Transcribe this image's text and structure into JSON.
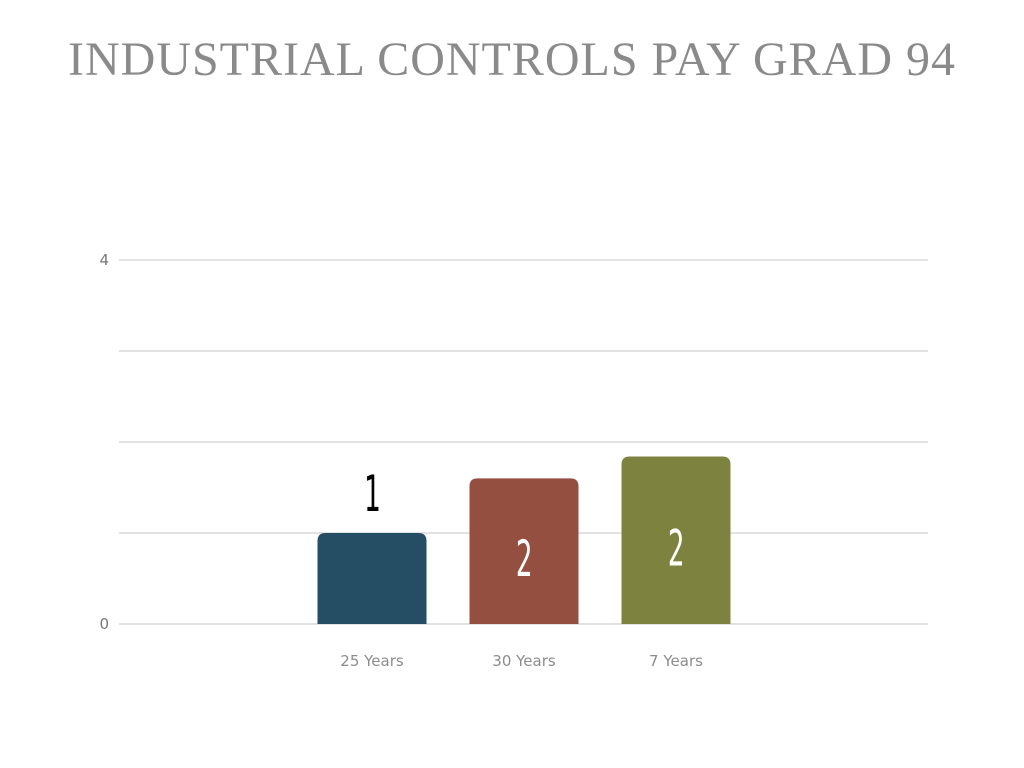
{
  "slide": {
    "title": "INDUSTRIAL CONTROLS PAY GRAD 94"
  },
  "chart_data": {
    "type": "bar",
    "title": "",
    "xlabel": "",
    "ylabel": "",
    "categories": [
      "25 Years",
      "30 Years",
      "7 Years"
    ],
    "values": [
      1,
      1.6,
      1.84
    ],
    "data_labels": [
      "1",
      "2",
      "2"
    ],
    "bar_colors": [
      "#254d63",
      "#954f40",
      "#7e823f"
    ],
    "data_label_colors": [
      "#000000",
      "#ffffff",
      "#ffffff"
    ],
    "data_label_position": [
      "above",
      "inside",
      "inside"
    ],
    "ylim": [
      0,
      4
    ],
    "ytick_labels": [
      "0",
      "4"
    ],
    "gridlines": [
      0,
      1,
      2,
      3,
      4
    ],
    "grid": true,
    "gridline_color": "#d9d9d9",
    "legend": "none"
  }
}
